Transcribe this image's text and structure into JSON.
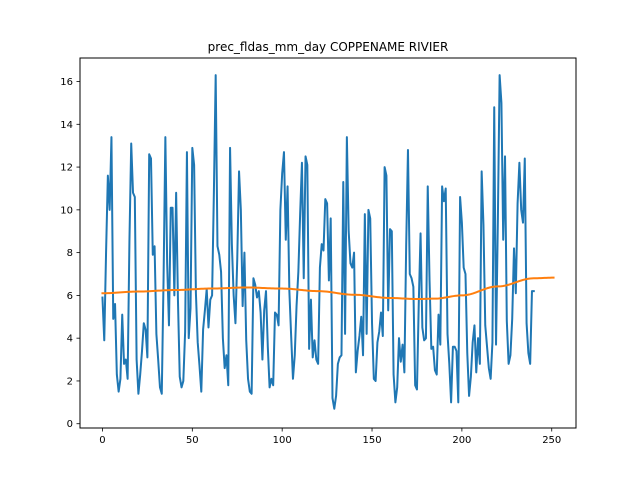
{
  "chart_data": {
    "type": "line",
    "title": "prec_fldas_mm_day COPPENAME RIVIER",
    "xlabel": "",
    "ylabel": "",
    "xlim": [
      -12.5,
      263.5
    ],
    "ylim": [
      -0.2,
      17.1
    ],
    "x_ticks": [
      0,
      50,
      100,
      150,
      200,
      250
    ],
    "y_ticks": [
      0,
      2,
      4,
      6,
      8,
      10,
      12,
      14,
      16
    ],
    "grid": false,
    "legend": "none",
    "series": [
      {
        "color": "#1f77b4",
        "values": [
          5.9,
          3.9,
          8.0,
          11.6,
          10.0,
          13.4,
          4.9,
          5.6,
          2.3,
          1.5,
          2.1,
          5.1,
          2.8,
          3.0,
          2.1,
          8.5,
          13.1,
          10.8,
          10.6,
          3.0,
          1.4,
          2.3,
          3.4,
          4.7,
          4.4,
          3.1,
          12.6,
          12.4,
          7.9,
          8.3,
          4.2,
          3.0,
          1.7,
          1.4,
          6.8,
          13.4,
          7.5,
          4.6,
          10.1,
          10.1,
          6.0,
          10.8,
          5.8,
          2.2,
          1.7,
          2.0,
          4.3,
          12.7,
          4.0,
          5.4,
          12.9,
          12.1,
          6.1,
          3.8,
          2.7,
          1.5,
          4.4,
          5.3,
          6.3,
          4.5,
          5.8,
          6.0,
          10.8,
          16.3,
          8.3,
          7.9,
          7.1,
          4.0,
          2.6,
          3.2,
          1.8,
          12.9,
          8.4,
          6.0,
          4.7,
          7.7,
          11.8,
          10.0,
          5.5,
          8.0,
          3.9,
          2.1,
          1.5,
          1.4,
          6.8,
          6.5,
          5.9,
          6.2,
          5.2,
          3.0,
          5.3,
          6.2,
          3.6,
          1.7,
          2.1,
          1.8,
          5.2,
          5.1,
          4.6,
          10.0,
          11.7,
          12.7,
          8.6,
          11.1,
          6.2,
          4.1,
          2.1,
          3.2,
          5.5,
          7.1,
          9.8,
          12.2,
          6.8,
          12.5,
          12.1,
          3.5,
          5.8,
          3.1,
          3.9,
          3.0,
          2.8,
          7.3,
          8.4,
          8.1,
          10.5,
          10.3,
          6.7,
          9.6,
          1.2,
          0.7,
          1.3,
          2.8,
          3.1,
          3.2,
          11.3,
          4.2,
          13.4,
          9.0,
          7.5,
          7.3,
          8.0,
          2.4,
          3.4,
          4.1,
          5.0,
          3.2,
          9.8,
          4.2,
          10.0,
          9.6,
          4.7,
          2.1,
          2.0,
          3.8,
          4.3,
          5.2,
          4.1,
          12.0,
          11.6,
          5.3,
          9.1,
          9.0,
          2.3,
          1.0,
          1.7,
          4.0,
          2.9,
          3.7,
          2.4,
          8.3,
          12.8,
          7.0,
          6.8,
          6.4,
          1.8,
          1.6,
          5.6,
          8.9,
          4.5,
          3.9,
          4.0,
          11.1,
          6.7,
          3.5,
          3.6,
          2.5,
          2.3,
          5.1,
          3.7,
          11.1,
          10.4,
          11.0,
          4.2,
          2.8,
          1.0,
          3.6,
          3.6,
          3.4,
          1.0,
          10.6,
          9.4,
          7.3,
          7.0,
          3.3,
          1.3,
          2.2,
          3.8,
          4.6,
          2.4,
          4.0,
          2.8,
          11.8,
          9.3,
          4.6,
          3.6,
          2.6,
          2.1,
          3.8,
          14.8,
          3.7,
          9.4,
          16.3,
          15.0,
          8.6,
          12.5,
          4.8,
          2.8,
          3.2,
          4.9,
          8.2,
          6.1,
          10.3,
          12.2,
          10.0,
          9.4,
          12.4,
          4.7,
          3.3,
          2.8,
          6.2,
          6.2
        ]
      },
      {
        "color": "#ff7f0e",
        "smooth_knots": [
          [
            0,
            6.1
          ],
          [
            20,
            6.18
          ],
          [
            40,
            6.25
          ],
          [
            60,
            6.32
          ],
          [
            80,
            6.37
          ],
          [
            100,
            6.32
          ],
          [
            120,
            6.2
          ],
          [
            140,
            6.03
          ],
          [
            160,
            5.88
          ],
          [
            175,
            5.83
          ],
          [
            185,
            5.85
          ],
          [
            200,
            6.0
          ],
          [
            220,
            6.42
          ],
          [
            240,
            6.8
          ],
          [
            251,
            6.83
          ]
        ]
      }
    ]
  }
}
